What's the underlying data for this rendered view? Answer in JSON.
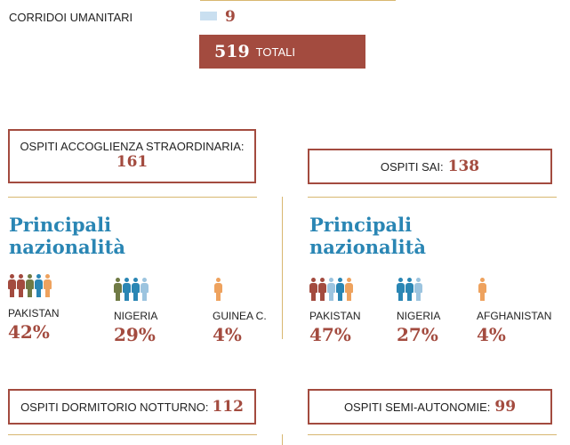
{
  "corridoi": {
    "label": "CORRIDOI UMANITARI",
    "value": "9",
    "swatch": "#c9dff0"
  },
  "totali": {
    "value": "519",
    "label": "TOTALI",
    "bg": "#a34b3f"
  },
  "colors": {
    "accent": "#a34b3f",
    "heading": "#2a86b4",
    "divider": "#d8b770"
  },
  "left": {
    "box_label": "OSPITI ACCOGLIENZA STRAORDINARIA:",
    "box_value": "161",
    "heading": [
      "Principali",
      "nazionalità"
    ],
    "items": [
      {
        "name": "PAKISTAN",
        "pct": "42%",
        "icons": [
          "person-red",
          "person-red",
          "person-olive",
          "person-teal",
          "person-orange"
        ]
      },
      {
        "name": "NIGERIA",
        "pct": "29%",
        "icons": [
          "person-olive",
          "person-teal",
          "person-teal",
          "person-lightblue"
        ]
      },
      {
        "name": "GUINEA C.",
        "pct": "4%",
        "icons": [
          "person-orange"
        ]
      }
    ],
    "bottom_label": "OSPITI DORMITORIO NOTTURNO:",
    "bottom_value": "112"
  },
  "right": {
    "box_label": "OSPITI SAI:",
    "box_value": "138",
    "heading": [
      "Principali",
      "nazionalità"
    ],
    "items": [
      {
        "name": "PAKISTAN",
        "pct": "47%",
        "icons": [
          "person-red",
          "person-red",
          "person-lightblue",
          "person-teal",
          "person-orange"
        ]
      },
      {
        "name": "NIGERIA",
        "pct": "27%",
        "icons": [
          "person-teal",
          "person-teal",
          "person-lightblue"
        ]
      },
      {
        "name": "AFGHANISTAN",
        "pct": "4%",
        "icons": [
          "person-orange"
        ]
      }
    ],
    "bottom_label": "OSPITI SEMI-AUTONOMIE:",
    "bottom_value": "99"
  },
  "person_colors": {
    "person-red": "#a34b3f",
    "person-olive": "#6f7a45",
    "person-teal": "#2a86b4",
    "person-lightblue": "#9cc4df",
    "person-orange": "#eea25e"
  }
}
